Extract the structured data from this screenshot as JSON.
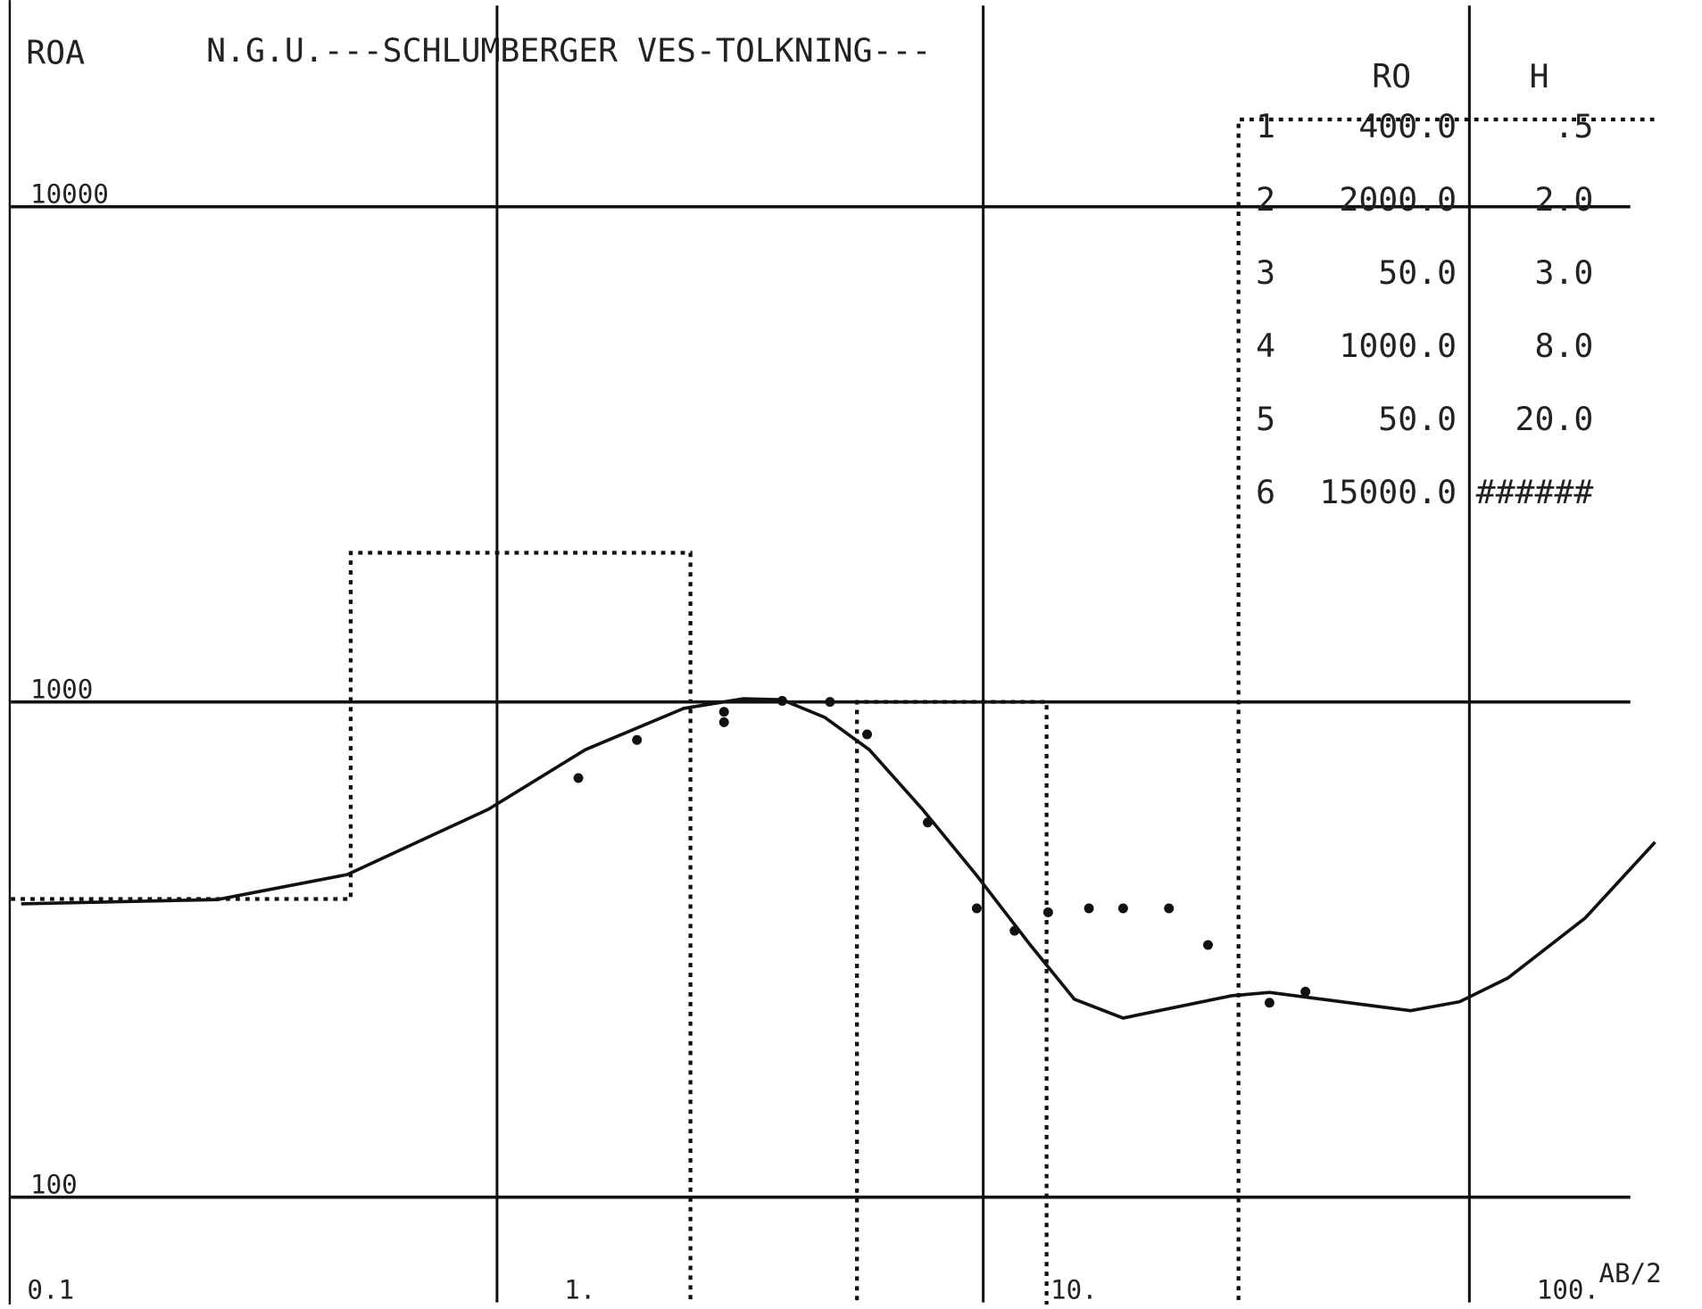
{
  "chart_data": {
    "type": "line",
    "title": "N.G.U.---SCHLUMBERGER VES-TOLKNING---",
    "y_label": "ROA",
    "x_label": "AB/2",
    "log_x": true,
    "log_y": true,
    "grid": true,
    "xlim": [
      0.1,
      240
    ],
    "ylim": [
      61,
      26000
    ],
    "xticks": [
      0.1,
      {
        "value": 1,
        "label": "1."
      },
      {
        "value": 10,
        "label": "10."
      },
      {
        "value": 100,
        "label": "100."
      }
    ],
    "yticks": [
      100,
      1000,
      10000
    ],
    "series": [
      {
        "mode": "dashed",
        "color": "#111",
        "x": [
          0.1,
          0.5,
          0.5,
          2.5,
          2.5,
          5.5,
          5.5,
          13.5,
          13.5,
          33.5,
          33.5,
          240
        ],
        "values": [
          400,
          400,
          2000,
          2000,
          50,
          50,
          1000,
          1000,
          50,
          50,
          15000,
          15000
        ]
      },
      {
        "mode": "line",
        "color": "#111",
        "x": [
          0.105,
          0.266,
          0.492,
          0.96,
          1.52,
          2.42,
          3.21,
          3.86,
          4.72,
          5.83,
          7.5,
          9.7,
          12.5,
          15.4,
          19.4,
          32.4,
          38.8,
          75.7,
          95.5,
          120,
          173,
          241
        ],
        "values": [
          391,
          399,
          448,
          607,
          801,
          970,
          1015,
          1010,
          931,
          801,
          607,
          446,
          323,
          251,
          230,
          255,
          259,
          238,
          248,
          277,
          366,
          521
        ]
      },
      {
        "mode": "markers",
        "color": "#111",
        "x": [
          1.47,
          1.94,
          2.93,
          2.93,
          3.86,
          4.84,
          5.77,
          7.69,
          9.7,
          11.6,
          13.6,
          16.5,
          19.4,
          24.1,
          29.0,
          38.8,
          46.0
        ],
        "values": [
          702,
          838,
          955,
          910,
          1005,
          1000,
          860,
          571,
          383,
          345,
          376,
          383,
          383,
          383,
          323,
          247,
          260
        ]
      }
    ],
    "table": {
      "header": [
        "RO",
        "H"
      ],
      "rows": [
        [
          "1",
          "400.0",
          ".5"
        ],
        [
          "2",
          "2000.0",
          "2.0"
        ],
        [
          "3",
          "50.0",
          "3.0"
        ],
        [
          "4",
          "1000.0",
          "8.0"
        ],
        [
          "5",
          "50.0",
          "20.0"
        ],
        [
          "6",
          "15000.0",
          "######"
        ]
      ]
    }
  }
}
